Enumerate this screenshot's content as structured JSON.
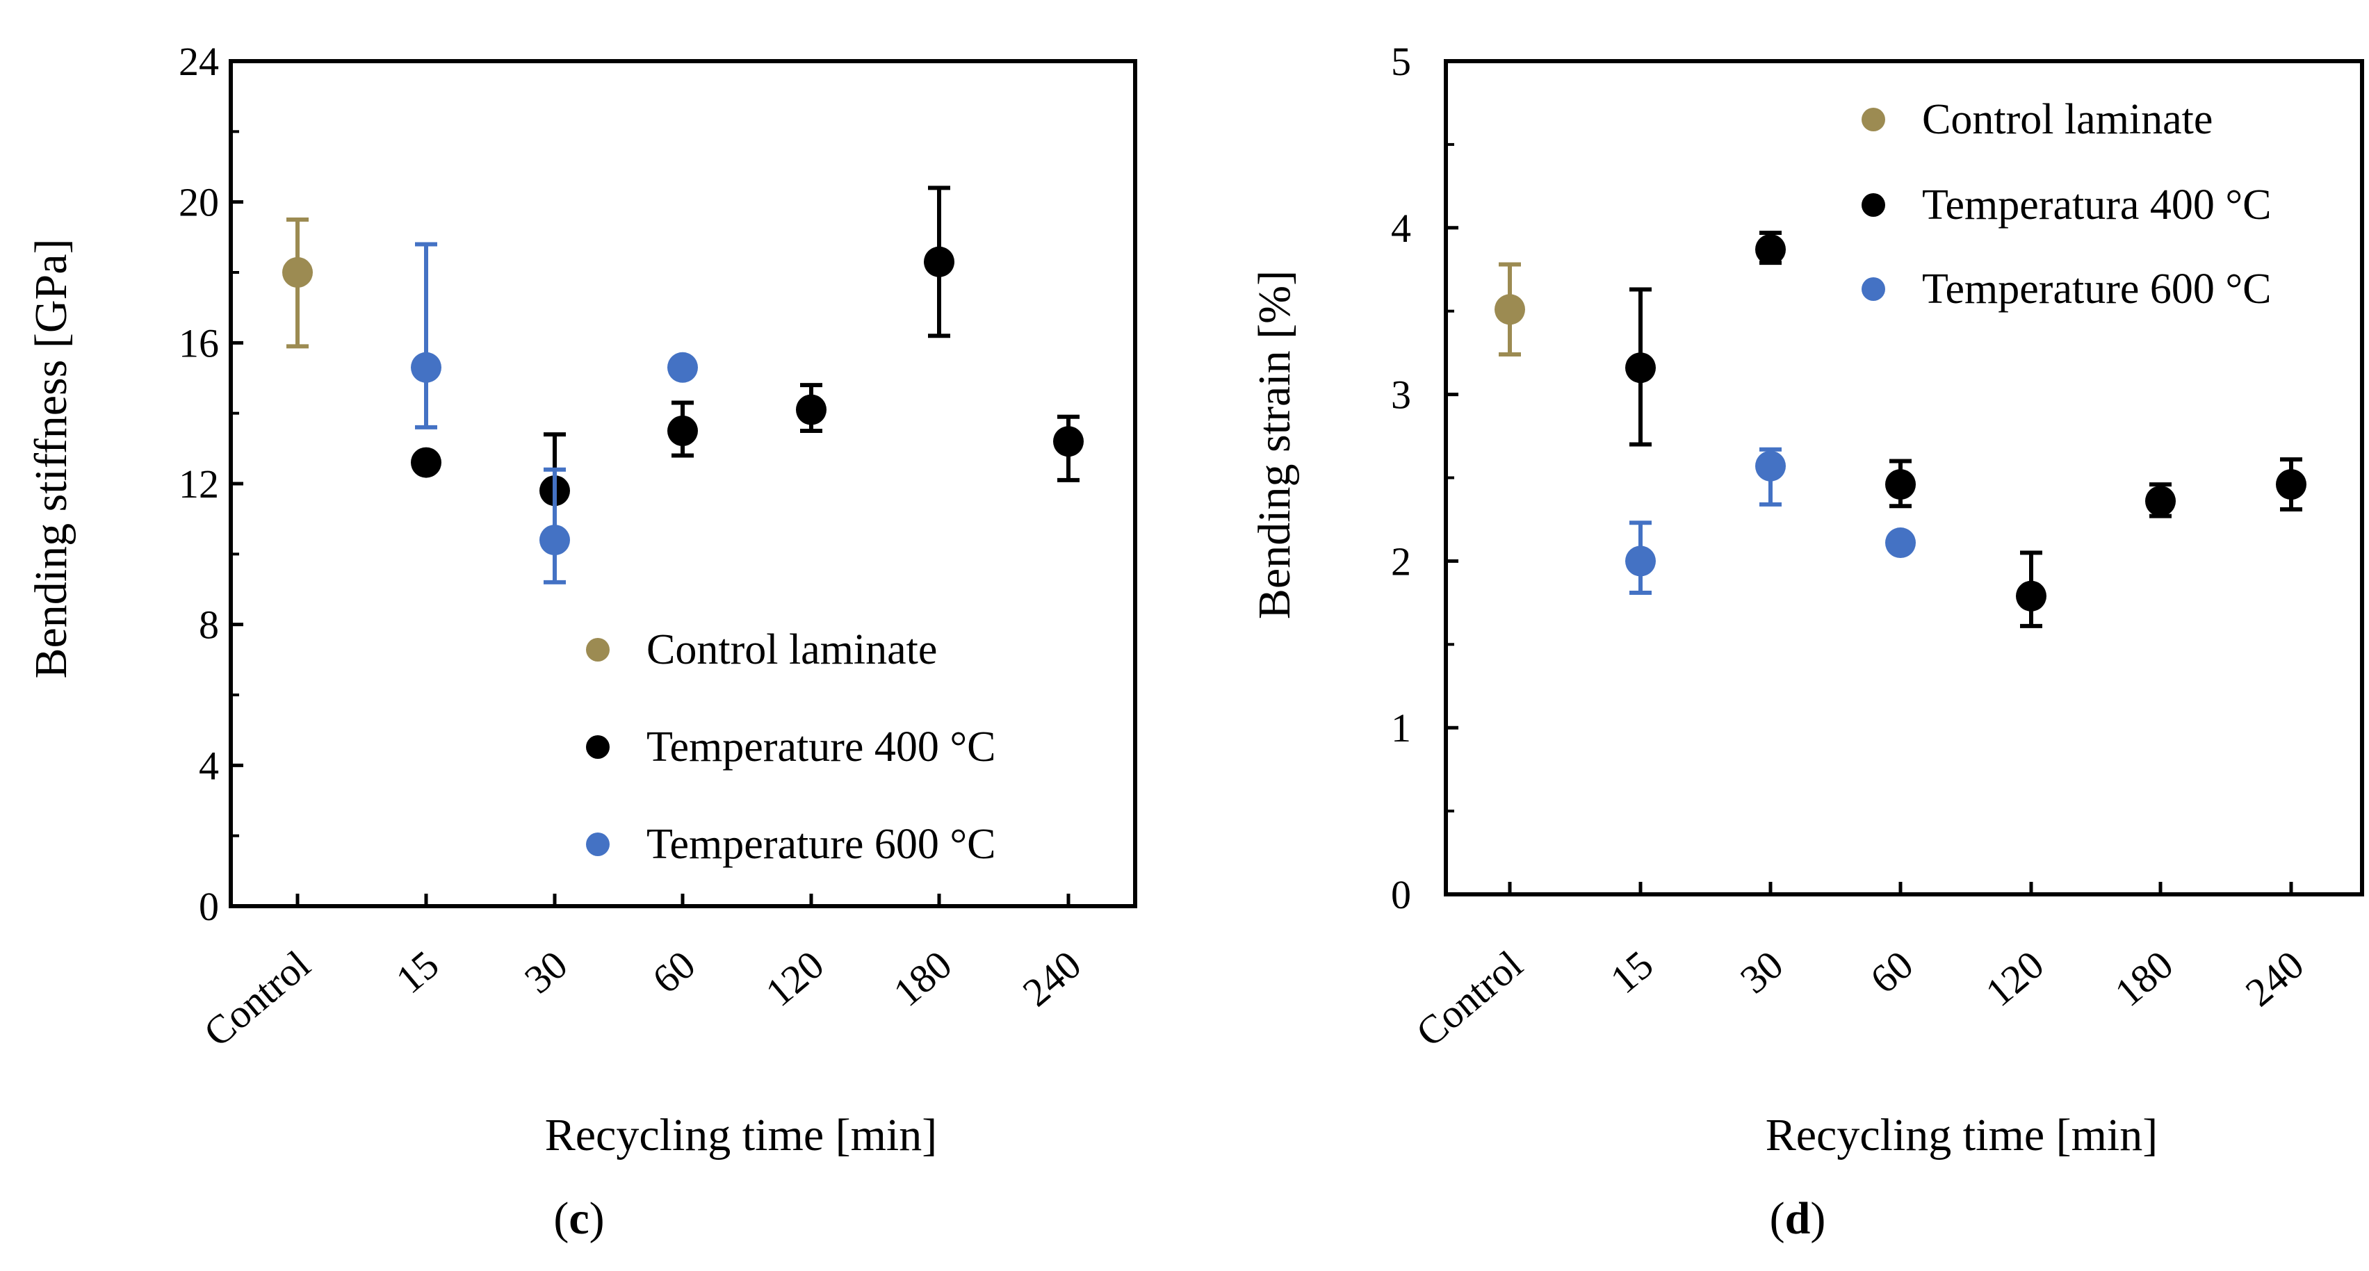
{
  "chart_data": [
    {
      "type": "scatter",
      "panel_label": "c",
      "xlabel": "Recycling time [min]",
      "ylabel": "Bending stiffness [GPa]",
      "categories": [
        "Control",
        "15",
        "30",
        "60",
        "120",
        "180",
        "240"
      ],
      "ylim": [
        0,
        24
      ],
      "yticks": [
        0,
        4,
        8,
        12,
        16,
        20,
        24
      ],
      "legend_position": "bottom-right",
      "series": [
        {
          "name": "Control laminate",
          "color": "#9c8b52",
          "points": [
            {
              "category": "Control",
              "value": 18.0,
              "err_low": 15.9,
              "err_high": 19.5
            }
          ]
        },
        {
          "name": "Temperature 400 °C",
          "color": "#000000",
          "points": [
            {
              "category": "15",
              "value": 12.6,
              "err_low": 12.6,
              "err_high": 12.6
            },
            {
              "category": "30",
              "value": 11.8,
              "err_low": 10.3,
              "err_high": 13.4
            },
            {
              "category": "60",
              "value": 13.5,
              "err_low": 12.8,
              "err_high": 14.3
            },
            {
              "category": "120",
              "value": 14.1,
              "err_low": 13.5,
              "err_high": 14.8
            },
            {
              "category": "180",
              "value": 18.3,
              "err_low": 16.2,
              "err_high": 20.4
            },
            {
              "category": "240",
              "value": 13.2,
              "err_low": 12.1,
              "err_high": 13.9
            }
          ]
        },
        {
          "name": "Temperature 600 °C",
          "color": "#4472c4",
          "points": [
            {
              "category": "15",
              "value": 15.3,
              "err_low": 13.6,
              "err_high": 18.8
            },
            {
              "category": "30",
              "value": 10.4,
              "err_low": 9.2,
              "err_high": 12.4
            },
            {
              "category": "60",
              "value": 15.3,
              "err_low": 15.3,
              "err_high": 15.3
            }
          ]
        }
      ]
    },
    {
      "type": "scatter",
      "panel_label": "d",
      "xlabel": "Recycling time [min]",
      "ylabel": "Bending strain [%]",
      "categories": [
        "Control",
        "15",
        "30",
        "60",
        "120",
        "180",
        "240"
      ],
      "ylim": [
        0,
        5
      ],
      "yticks": [
        0,
        1,
        2,
        3,
        4,
        5
      ],
      "legend_position": "top-right",
      "series": [
        {
          "name": "Control laminate",
          "color": "#9c8b52",
          "points": [
            {
              "category": "Control",
              "value": 3.51,
              "err_low": 3.24,
              "err_high": 3.78
            }
          ]
        },
        {
          "name": "Temperatura 400 °C",
          "color": "#000000",
          "points": [
            {
              "category": "15",
              "value": 3.16,
              "err_low": 2.7,
              "err_high": 3.63
            },
            {
              "category": "30",
              "value": 3.87,
              "err_low": 3.79,
              "err_high": 3.97
            },
            {
              "category": "60",
              "value": 2.46,
              "err_low": 2.33,
              "err_high": 2.6
            },
            {
              "category": "120",
              "value": 1.79,
              "err_low": 1.61,
              "err_high": 2.05
            },
            {
              "category": "180",
              "value": 2.36,
              "err_low": 2.27,
              "err_high": 2.46
            },
            {
              "category": "240",
              "value": 2.46,
              "err_low": 2.31,
              "err_high": 2.61
            }
          ]
        },
        {
          "name": "Temperature 600 °C",
          "color": "#4472c4",
          "points": [
            {
              "category": "15",
              "value": 2.0,
              "err_low": 1.81,
              "err_high": 2.23
            },
            {
              "category": "30",
              "value": 2.57,
              "err_low": 2.34,
              "err_high": 2.67
            },
            {
              "category": "60",
              "value": 2.11,
              "err_low": 2.11,
              "err_high": 2.11
            }
          ]
        }
      ]
    }
  ]
}
